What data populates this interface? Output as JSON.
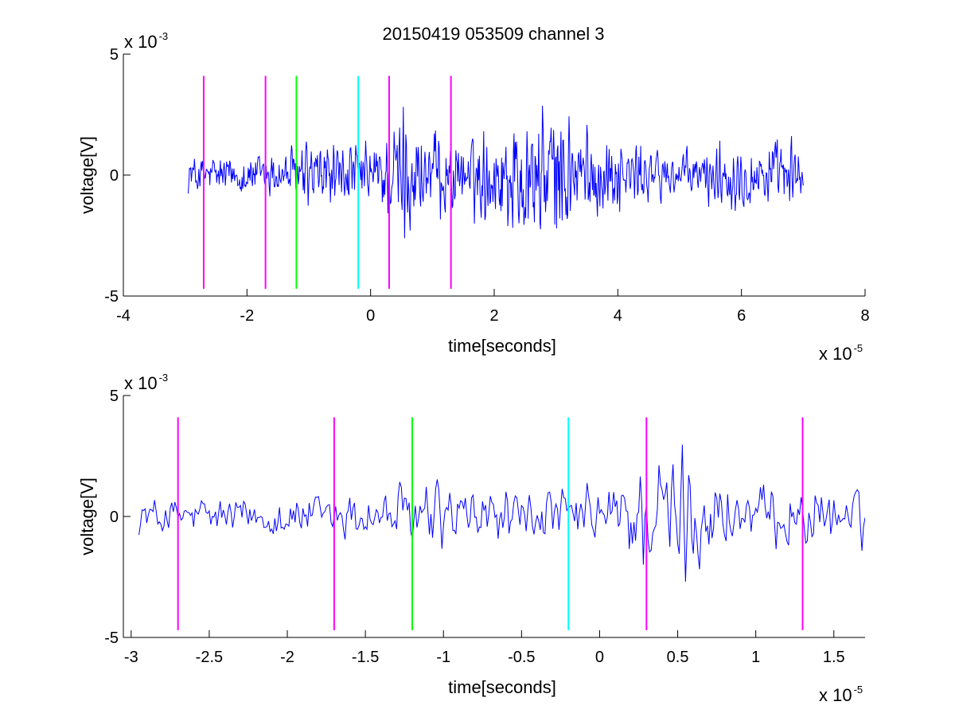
{
  "chart_data": [
    {
      "type": "line",
      "title": "20150419 053509 channel 3",
      "xlabel": "time[seconds]",
      "ylabel": "voltage[V]",
      "x_exponent_label": "x 10",
      "x_exponent": "-5",
      "y_exponent_label": "x 10",
      "y_exponent": "-3",
      "xlim": [
        -4,
        8
      ],
      "ylim": [
        -5,
        5
      ],
      "x_ticks": [
        -4,
        -2,
        0,
        2,
        4,
        6,
        8
      ],
      "x_tick_labels": [
        "-4",
        "-2",
        "0",
        "2",
        "4",
        "6",
        "8"
      ],
      "y_ticks": [
        -5,
        0,
        5
      ],
      "y_tick_labels": [
        "-5",
        "0",
        "5"
      ],
      "grid": false,
      "signal": {
        "color": "#0000ff",
        "x_start": -2.95,
        "x_end": 7.0,
        "envelope": [
          {
            "x": -2.95,
            "amp": 0.9
          },
          {
            "x": -1.5,
            "amp": 1.1
          },
          {
            "x": -1.0,
            "amp": 1.6
          },
          {
            "x": 0.0,
            "amp": 1.3
          },
          {
            "x": 0.5,
            "amp": 2.8
          },
          {
            "x": 1.5,
            "amp": 1.4
          },
          {
            "x": 2.5,
            "amp": 3.2
          },
          {
            "x": 3.0,
            "amp": 3.3
          },
          {
            "x": 3.5,
            "amp": 2.0
          },
          {
            "x": 5.0,
            "amp": 1.0
          },
          {
            "x": 6.0,
            "amp": 1.6
          },
          {
            "x": 7.0,
            "amp": 1.3
          }
        ]
      },
      "markers": [
        {
          "x": -2.7,
          "color": "#ff00ff"
        },
        {
          "x": -1.7,
          "color": "#ff00ff"
        },
        {
          "x": -1.2,
          "color": "#00ff00"
        },
        {
          "x": -0.2,
          "color": "#00ffff"
        },
        {
          "x": 0.3,
          "color": "#ff00ff"
        },
        {
          "x": 1.3,
          "color": "#ff00ff"
        }
      ],
      "marker_range": [
        -4.7,
        4.1
      ]
    },
    {
      "type": "line",
      "title": "",
      "xlabel": "time[seconds]",
      "ylabel": "voltage[V]",
      "x_exponent_label": "x 10",
      "x_exponent": "-5",
      "y_exponent_label": "x 10",
      "y_exponent": "-3",
      "xlim": [
        -3.05,
        1.7
      ],
      "ylim": [
        -5,
        5
      ],
      "x_ticks": [
        -3,
        -2.5,
        -2,
        -1.5,
        -1,
        -0.5,
        0,
        0.5,
        1,
        1.5
      ],
      "x_tick_labels": [
        "-3",
        "-2.5",
        "-2",
        "-1.5",
        "-1",
        "-0.5",
        "0",
        "0.5",
        "1",
        "1.5"
      ],
      "y_ticks": [
        -5,
        0,
        5
      ],
      "y_tick_labels": [
        "-5",
        "0",
        "5"
      ],
      "grid": false,
      "signal": {
        "color": "#0000ff",
        "x_start": -2.95,
        "x_end": 1.7,
        "envelope": [
          {
            "x": -2.95,
            "amp": 0.9
          },
          {
            "x": -2.5,
            "amp": 1.0
          },
          {
            "x": -1.5,
            "amp": 1.2
          },
          {
            "x": -1.1,
            "amp": 1.8
          },
          {
            "x": -0.7,
            "amp": 1.2
          },
          {
            "x": 0.0,
            "amp": 1.3
          },
          {
            "x": 0.3,
            "amp": 2.8
          },
          {
            "x": 0.5,
            "amp": 3.0
          },
          {
            "x": 0.9,
            "amp": 1.5
          },
          {
            "x": 1.7,
            "amp": 1.2
          }
        ]
      },
      "markers": [
        {
          "x": -2.7,
          "color": "#ff00ff"
        },
        {
          "x": -1.7,
          "color": "#ff00ff"
        },
        {
          "x": -1.2,
          "color": "#00ff00"
        },
        {
          "x": -0.2,
          "color": "#00ffff"
        },
        {
          "x": 0.3,
          "color": "#ff00ff"
        },
        {
          "x": 1.3,
          "color": "#ff00ff"
        }
      ],
      "marker_range": [
        -4.7,
        4.1
      ]
    }
  ]
}
